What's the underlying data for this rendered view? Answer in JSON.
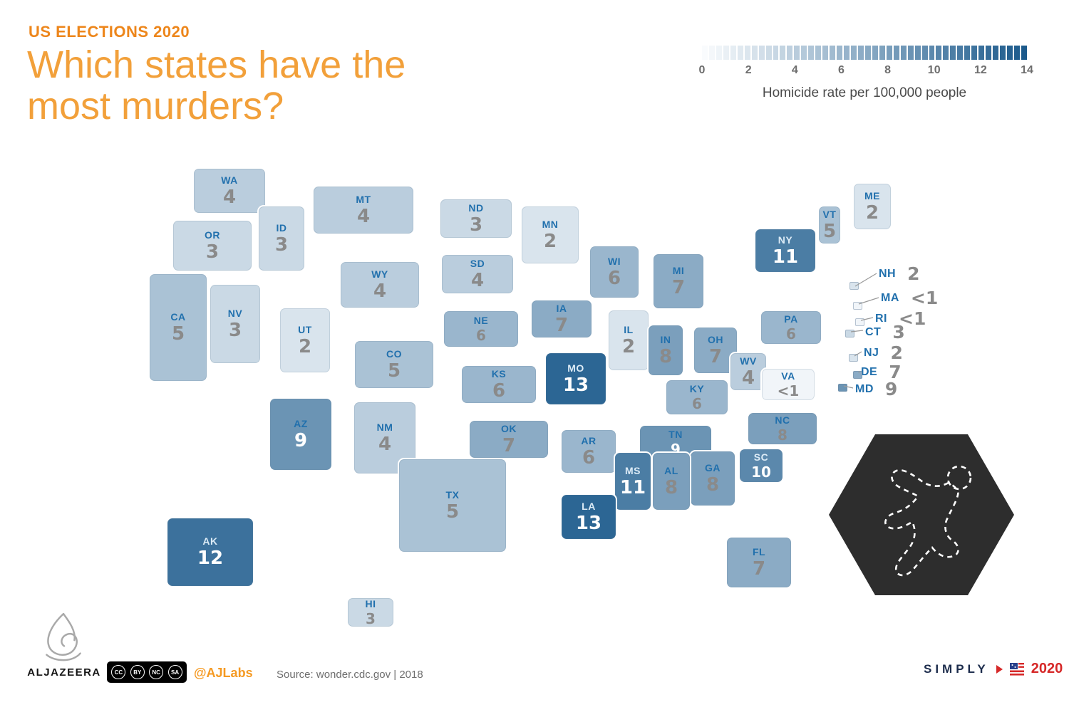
{
  "header": {
    "kicker": "US ELECTIONS 2020",
    "title_line1": "Which states have the",
    "title_line2": "most murders?"
  },
  "legend": {
    "ticks": [
      "0",
      "2",
      "4",
      "6",
      "8",
      "10",
      "12",
      "14"
    ],
    "caption": "Homicide rate per 100,000 people",
    "min_color": "#f9fbfd",
    "max_color": "#1c5a8c"
  },
  "chart_data": {
    "type": "heatmap",
    "subtype": "us-state-choropleth",
    "title": "Which states have the most murders?",
    "value_label": "Homicide rate per 100,000 people",
    "value_range": [
      0,
      14
    ],
    "source": "wonder.cdc.gov | 2018",
    "states": [
      {
        "abbr": "WA",
        "display": "4",
        "value": 4
      },
      {
        "abbr": "OR",
        "display": "3",
        "value": 3
      },
      {
        "abbr": "CA",
        "display": "5",
        "value": 5
      },
      {
        "abbr": "NV",
        "display": "3",
        "value": 3
      },
      {
        "abbr": "ID",
        "display": "3",
        "value": 3
      },
      {
        "abbr": "MT",
        "display": "4",
        "value": 4
      },
      {
        "abbr": "WY",
        "display": "4",
        "value": 4
      },
      {
        "abbr": "UT",
        "display": "2",
        "value": 2
      },
      {
        "abbr": "CO",
        "display": "5",
        "value": 5
      },
      {
        "abbr": "AZ",
        "display": "9",
        "value": 9
      },
      {
        "abbr": "NM",
        "display": "4",
        "value": 4
      },
      {
        "abbr": "ND",
        "display": "3",
        "value": 3
      },
      {
        "abbr": "SD",
        "display": "4",
        "value": 4
      },
      {
        "abbr": "NE",
        "display": "6",
        "value": 6
      },
      {
        "abbr": "KS",
        "display": "6",
        "value": 6
      },
      {
        "abbr": "OK",
        "display": "7",
        "value": 7
      },
      {
        "abbr": "TX",
        "display": "5",
        "value": 5
      },
      {
        "abbr": "MN",
        "display": "2",
        "value": 2
      },
      {
        "abbr": "IA",
        "display": "7",
        "value": 7
      },
      {
        "abbr": "MO",
        "display": "13",
        "value": 13
      },
      {
        "abbr": "AR",
        "display": "6",
        "value": 6
      },
      {
        "abbr": "LA",
        "display": "13",
        "value": 13
      },
      {
        "abbr": "WI",
        "display": "6",
        "value": 6
      },
      {
        "abbr": "IL",
        "display": "2",
        "value": 2
      },
      {
        "abbr": "MI",
        "display": "7",
        "value": 7
      },
      {
        "abbr": "IN",
        "display": "8",
        "value": 8
      },
      {
        "abbr": "OH",
        "display": "7",
        "value": 7
      },
      {
        "abbr": "KY",
        "display": "6",
        "value": 6
      },
      {
        "abbr": "TN",
        "display": "9",
        "value": 9
      },
      {
        "abbr": "MS",
        "display": "11",
        "value": 11
      },
      {
        "abbr": "AL",
        "display": "8",
        "value": 8
      },
      {
        "abbr": "GA",
        "display": "8",
        "value": 8
      },
      {
        "abbr": "SC",
        "display": "10",
        "value": 10
      },
      {
        "abbr": "NC",
        "display": "8",
        "value": 8
      },
      {
        "abbr": "FL",
        "display": "7",
        "value": 7
      },
      {
        "abbr": "VA",
        "display": "<1",
        "value": 0.5
      },
      {
        "abbr": "WV",
        "display": "4",
        "value": 4
      },
      {
        "abbr": "PA",
        "display": "6",
        "value": 6
      },
      {
        "abbr": "NY",
        "display": "11",
        "value": 11
      },
      {
        "abbr": "VT",
        "display": "5",
        "value": 5
      },
      {
        "abbr": "ME",
        "display": "2",
        "value": 2
      },
      {
        "abbr": "NH",
        "display": "2",
        "value": 2
      },
      {
        "abbr": "MA",
        "display": "<1",
        "value": 0.5
      },
      {
        "abbr": "RI",
        "display": "<1",
        "value": 0.5
      },
      {
        "abbr": "CT",
        "display": "3",
        "value": 3
      },
      {
        "abbr": "NJ",
        "display": "2",
        "value": 2
      },
      {
        "abbr": "DE",
        "display": "7",
        "value": 7
      },
      {
        "abbr": "MD",
        "display": "9",
        "value": 9
      },
      {
        "abbr": "AK",
        "display": "12",
        "value": 12
      },
      {
        "abbr": "HI",
        "display": "3",
        "value": 3
      }
    ]
  },
  "footer": {
    "brand": "ALJAZEERA",
    "license": [
      "CC",
      "BY",
      "NC",
      "SA"
    ],
    "handle": "@AJLabs",
    "source": "Source: wonder.cdc.gov | 2018",
    "campaign_word": "SIMPLY",
    "campaign_year": "2020"
  }
}
